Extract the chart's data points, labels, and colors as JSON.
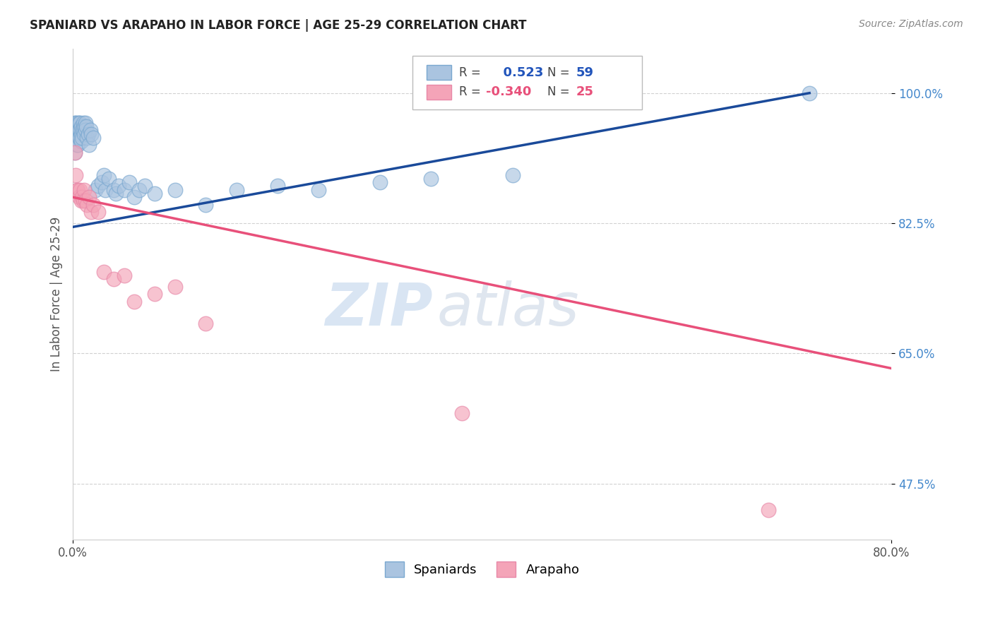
{
  "title": "SPANIARD VS ARAPAHO IN LABOR FORCE | AGE 25-29 CORRELATION CHART",
  "source": "Source: ZipAtlas.com",
  "ylabel": "In Labor Force | Age 25-29",
  "xlim": [
    0.0,
    0.8
  ],
  "ylim": [
    0.4,
    1.06
  ],
  "xticks": [
    0.0,
    0.8
  ],
  "xticklabels": [
    "0.0%",
    "80.0%"
  ],
  "yticks": [
    0.475,
    0.65,
    0.825,
    1.0
  ],
  "yticklabels": [
    "47.5%",
    "65.0%",
    "82.5%",
    "100.0%"
  ],
  "spaniard_color": "#aac4e0",
  "arapaho_color": "#f4a4b8",
  "trend_blue": "#1a4a9a",
  "trend_pink": "#e8507a",
  "R_spaniard": 0.523,
  "N_spaniard": 59,
  "R_arapaho": -0.34,
  "N_arapaho": 25,
  "watermark_zip": "ZIP",
  "watermark_atlas": "atlas",
  "background_color": "#ffffff",
  "grid_color": "#cccccc",
  "spaniard_x": [
    0.002,
    0.002,
    0.002,
    0.003,
    0.003,
    0.004,
    0.004,
    0.004,
    0.005,
    0.005,
    0.005,
    0.006,
    0.006,
    0.006,
    0.007,
    0.007,
    0.007,
    0.008,
    0.008,
    0.008,
    0.009,
    0.009,
    0.01,
    0.01,
    0.011,
    0.011,
    0.012,
    0.012,
    0.013,
    0.014,
    0.015,
    0.016,
    0.017,
    0.018,
    0.02,
    0.022,
    0.025,
    0.028,
    0.03,
    0.032,
    0.035,
    0.04,
    0.042,
    0.045,
    0.05,
    0.055,
    0.06,
    0.065,
    0.07,
    0.08,
    0.1,
    0.13,
    0.16,
    0.2,
    0.24,
    0.3,
    0.35,
    0.43,
    0.72
  ],
  "spaniard_y": [
    0.96,
    0.94,
    0.92,
    0.96,
    0.95,
    0.95,
    0.94,
    0.93,
    0.96,
    0.95,
    0.93,
    0.96,
    0.95,
    0.94,
    0.96,
    0.95,
    0.94,
    0.955,
    0.945,
    0.935,
    0.95,
    0.94,
    0.96,
    0.95,
    0.955,
    0.945,
    0.96,
    0.95,
    0.955,
    0.94,
    0.945,
    0.93,
    0.95,
    0.945,
    0.94,
    0.87,
    0.875,
    0.88,
    0.89,
    0.87,
    0.885,
    0.87,
    0.865,
    0.875,
    0.87,
    0.88,
    0.86,
    0.87,
    0.875,
    0.865,
    0.87,
    0.85,
    0.87,
    0.875,
    0.87,
    0.88,
    0.885,
    0.89,
    1.0
  ],
  "arapaho_x": [
    0.002,
    0.003,
    0.004,
    0.005,
    0.006,
    0.007,
    0.008,
    0.009,
    0.01,
    0.011,
    0.012,
    0.014,
    0.016,
    0.018,
    0.02,
    0.025,
    0.03,
    0.04,
    0.05,
    0.06,
    0.08,
    0.1,
    0.13,
    0.38,
    0.68
  ],
  "arapaho_y": [
    0.92,
    0.89,
    0.87,
    0.87,
    0.86,
    0.87,
    0.855,
    0.86,
    0.855,
    0.87,
    0.855,
    0.85,
    0.86,
    0.84,
    0.85,
    0.84,
    0.76,
    0.75,
    0.755,
    0.72,
    0.73,
    0.74,
    0.69,
    0.57,
    0.44
  ],
  "blue_trend_x0": 0.0,
  "blue_trend_y0": 0.82,
  "blue_trend_x1": 0.72,
  "blue_trend_y1": 1.0,
  "pink_trend_x0": 0.0,
  "pink_trend_y0": 0.86,
  "pink_trend_x1": 0.8,
  "pink_trend_y1": 0.63
}
